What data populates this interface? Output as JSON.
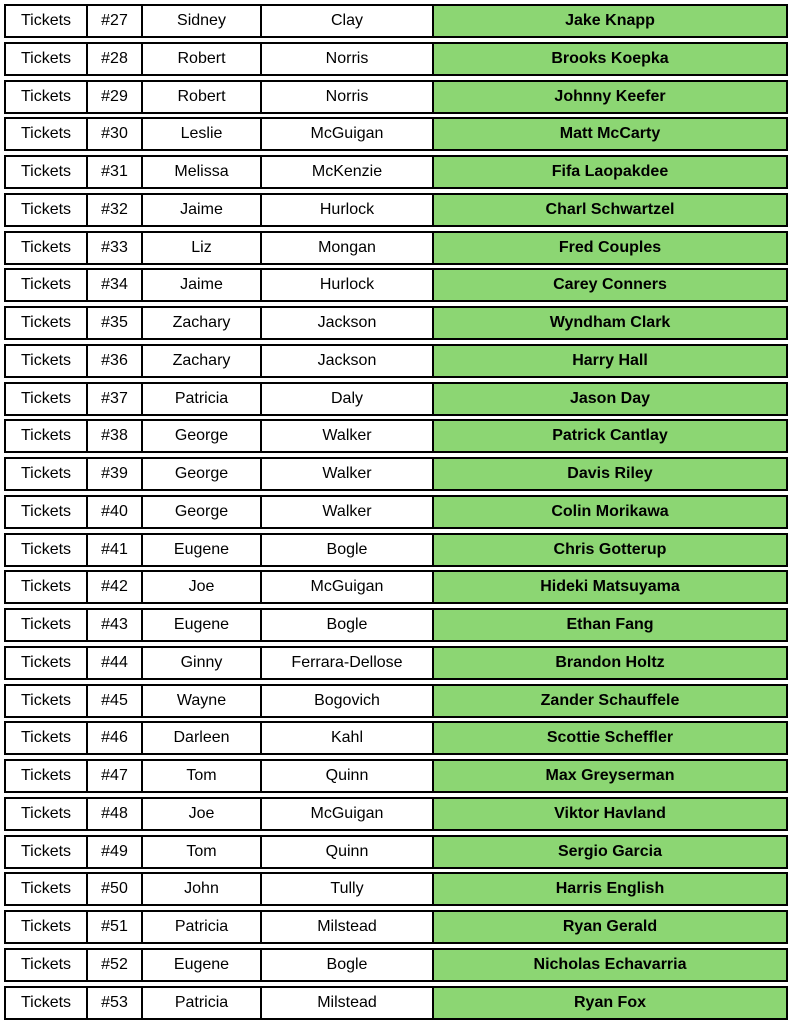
{
  "colors": {
    "golfer_cell_bg": "#8CD673",
    "border": "#000000",
    "text": "#000000",
    "row_bg": "#ffffff"
  },
  "table": {
    "column_names": [
      "category",
      "ticket_number",
      "first_name",
      "last_name",
      "golfer_name"
    ],
    "rows": [
      {
        "category": "Tickets",
        "number": "#27",
        "first": "Sidney",
        "last": "Clay",
        "golfer": "Jake Knapp"
      },
      {
        "category": "Tickets",
        "number": "#28",
        "first": "Robert",
        "last": "Norris",
        "golfer": "Brooks Koepka"
      },
      {
        "category": "Tickets",
        "number": "#29",
        "first": "Robert",
        "last": "Norris",
        "golfer": "Johnny Keefer"
      },
      {
        "category": "Tickets",
        "number": "#30",
        "first": "Leslie",
        "last": "McGuigan",
        "golfer": "Matt McCarty"
      },
      {
        "category": "Tickets",
        "number": "#31",
        "first": "Melissa",
        "last": "McKenzie",
        "golfer": "Fifa Laopakdee"
      },
      {
        "category": "Tickets",
        "number": "#32",
        "first": "Jaime",
        "last": "Hurlock",
        "golfer": "Charl Schwartzel"
      },
      {
        "category": "Tickets",
        "number": "#33",
        "first": "Liz",
        "last": "Mongan",
        "golfer": "Fred Couples"
      },
      {
        "category": "Tickets",
        "number": "#34",
        "first": "Jaime",
        "last": "Hurlock",
        "golfer": "Carey Conners"
      },
      {
        "category": "Tickets",
        "number": "#35",
        "first": "Zachary",
        "last": "Jackson",
        "golfer": "Wyndham Clark"
      },
      {
        "category": "Tickets",
        "number": "#36",
        "first": "Zachary",
        "last": "Jackson",
        "golfer": "Harry Hall"
      },
      {
        "category": "Tickets",
        "number": "#37",
        "first": "Patricia",
        "last": "Daly",
        "golfer": "Jason Day"
      },
      {
        "category": "Tickets",
        "number": "#38",
        "first": "George",
        "last": "Walker",
        "golfer": "Patrick Cantlay"
      },
      {
        "category": "Tickets",
        "number": "#39",
        "first": "George",
        "last": "Walker",
        "golfer": "Davis Riley"
      },
      {
        "category": "Tickets",
        "number": "#40",
        "first": "George",
        "last": "Walker",
        "golfer": "Colin Morikawa"
      },
      {
        "category": "Tickets",
        "number": "#41",
        "first": "Eugene",
        "last": "Bogle",
        "golfer": "Chris Gotterup"
      },
      {
        "category": "Tickets",
        "number": "#42",
        "first": "Joe",
        "last": "McGuigan",
        "golfer": "Hideki Matsuyama"
      },
      {
        "category": "Tickets",
        "number": "#43",
        "first": "Eugene",
        "last": "Bogle",
        "golfer": "Ethan Fang"
      },
      {
        "category": "Tickets",
        "number": "#44",
        "first": "Ginny",
        "last": "Ferrara-Dellose",
        "golfer": "Brandon Holtz"
      },
      {
        "category": "Tickets",
        "number": "#45",
        "first": "Wayne",
        "last": "Bogovich",
        "golfer": "Zander Schauffele"
      },
      {
        "category": "Tickets",
        "number": "#46",
        "first": "Darleen",
        "last": "Kahl",
        "golfer": "Scottie Scheffler"
      },
      {
        "category": "Tickets",
        "number": "#47",
        "first": "Tom",
        "last": "Quinn",
        "golfer": "Max Greyserman"
      },
      {
        "category": "Tickets",
        "number": "#48",
        "first": "Joe",
        "last": "McGuigan",
        "golfer": "Viktor Havland"
      },
      {
        "category": "Tickets",
        "number": "#49",
        "first": "Tom",
        "last": "Quinn",
        "golfer": "Sergio Garcia"
      },
      {
        "category": "Tickets",
        "number": "#50",
        "first": "John",
        "last": "Tully",
        "golfer": "Harris English"
      },
      {
        "category": "Tickets",
        "number": "#51",
        "first": "Patricia",
        "last": "Milstead",
        "golfer": "Ryan Gerald"
      },
      {
        "category": "Tickets",
        "number": "#52",
        "first": "Eugene",
        "last": "Bogle",
        "golfer": "Nicholas Echavarria"
      },
      {
        "category": "Tickets",
        "number": "#53",
        "first": "Patricia",
        "last": "Milstead",
        "golfer": "Ryan Fox"
      }
    ]
  }
}
